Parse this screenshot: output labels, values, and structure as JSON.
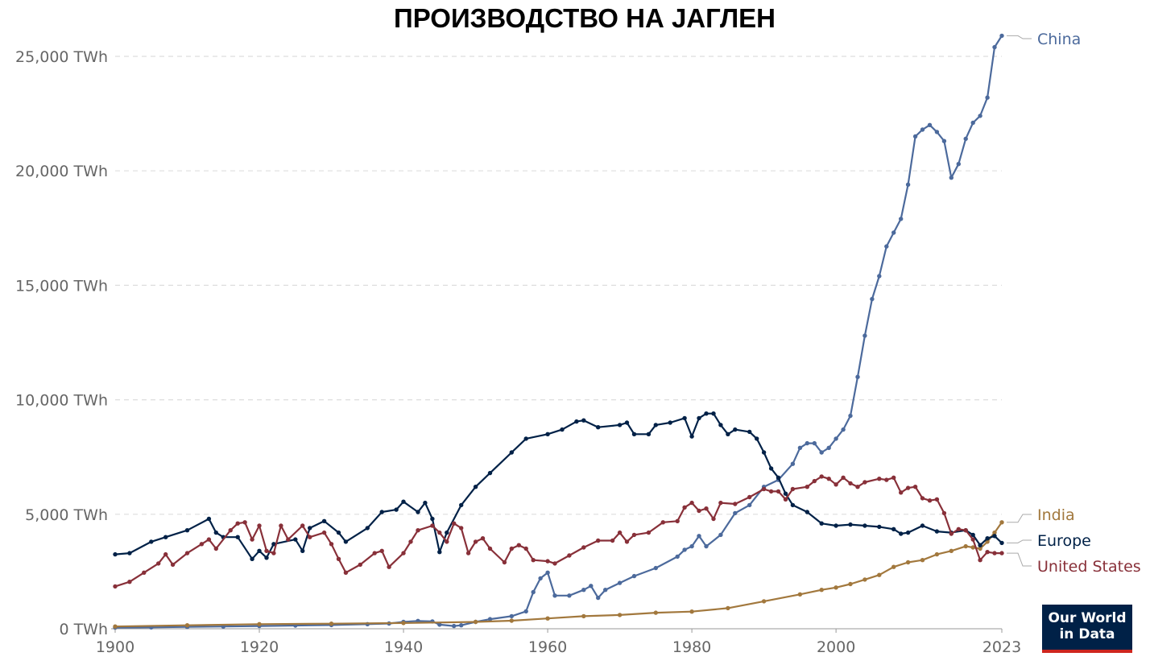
{
  "chart_data": {
    "type": "line",
    "title": "ПРОИЗВОДСТВО НА ЈАГЛЕН",
    "xlim": [
      1900,
      2023
    ],
    "ylim": [
      0,
      25000
    ],
    "x_ticks": [
      "1900",
      "1920",
      "1940",
      "1960",
      "1980",
      "2000",
      "2023"
    ],
    "y_ticks": [
      "0 TWh",
      "5,000 TWh",
      "10,000 TWh",
      "15,000 TWh",
      "20,000 TWh",
      "25,000 TWh"
    ],
    "grid": "horizontal dashed",
    "legend": "labels at line ends (right)",
    "series": [
      {
        "name": "China",
        "color": "#4c6a9c",
        "points": [
          [
            1900,
            50
          ],
          [
            1905,
            60
          ],
          [
            1910,
            80
          ],
          [
            1915,
            100
          ],
          [
            1920,
            120
          ],
          [
            1925,
            140
          ],
          [
            1930,
            160
          ],
          [
            1935,
            200
          ],
          [
            1938,
            230
          ],
          [
            1940,
            300
          ],
          [
            1942,
            340
          ],
          [
            1944,
            320
          ],
          [
            1945,
            180
          ],
          [
            1947,
            120
          ],
          [
            1948,
            150
          ],
          [
            1950,
            300
          ],
          [
            1952,
            420
          ],
          [
            1955,
            550
          ],
          [
            1957,
            760
          ],
          [
            1958,
            1600
          ],
          [
            1959,
            2200
          ],
          [
            1960,
            2450
          ],
          [
            1961,
            1450
          ],
          [
            1963,
            1450
          ],
          [
            1965,
            1700
          ],
          [
            1966,
            1870
          ],
          [
            1967,
            1350
          ],
          [
            1968,
            1700
          ],
          [
            1970,
            2000
          ],
          [
            1972,
            2300
          ],
          [
            1975,
            2650
          ],
          [
            1978,
            3150
          ],
          [
            1979,
            3450
          ],
          [
            1980,
            3600
          ],
          [
            1981,
            4050
          ],
          [
            1982,
            3600
          ],
          [
            1984,
            4100
          ],
          [
            1986,
            5050
          ],
          [
            1988,
            5400
          ],
          [
            1990,
            6200
          ],
          [
            1992,
            6500
          ],
          [
            1994,
            7200
          ],
          [
            1995,
            7900
          ],
          [
            1996,
            8100
          ],
          [
            1997,
            8100
          ],
          [
            1998,
            7700
          ],
          [
            1999,
            7900
          ],
          [
            2000,
            8300
          ],
          [
            2001,
            8700
          ],
          [
            2002,
            9300
          ],
          [
            2003,
            11000
          ],
          [
            2004,
            12800
          ],
          [
            2005,
            14400
          ],
          [
            2006,
            15400
          ],
          [
            2007,
            16700
          ],
          [
            2008,
            17300
          ],
          [
            2009,
            17900
          ],
          [
            2010,
            19400
          ],
          [
            2011,
            21500
          ],
          [
            2012,
            21800
          ],
          [
            2013,
            22000
          ],
          [
            2014,
            21700
          ],
          [
            2015,
            21300
          ],
          [
            2016,
            19700
          ],
          [
            2017,
            20300
          ],
          [
            2018,
            21400
          ],
          [
            2019,
            22100
          ],
          [
            2020,
            22400
          ],
          [
            2021,
            23200
          ],
          [
            2022,
            25400
          ],
          [
            2023,
            25900
          ]
        ]
      },
      {
        "name": "India",
        "color": "#a2783d",
        "points": [
          [
            1900,
            100
          ],
          [
            1910,
            150
          ],
          [
            1920,
            200
          ],
          [
            1930,
            220
          ],
          [
            1940,
            250
          ],
          [
            1950,
            300
          ],
          [
            1955,
            350
          ],
          [
            1960,
            450
          ],
          [
            1965,
            550
          ],
          [
            1970,
            600
          ],
          [
            1975,
            700
          ],
          [
            1980,
            750
          ],
          [
            1985,
            900
          ],
          [
            1990,
            1200
          ],
          [
            1995,
            1500
          ],
          [
            1998,
            1700
          ],
          [
            2000,
            1800
          ],
          [
            2002,
            1950
          ],
          [
            2004,
            2150
          ],
          [
            2006,
            2350
          ],
          [
            2008,
            2700
          ],
          [
            2010,
            2900
          ],
          [
            2012,
            3000
          ],
          [
            2014,
            3250
          ],
          [
            2016,
            3400
          ],
          [
            2018,
            3600
          ],
          [
            2019,
            3550
          ],
          [
            2020,
            3500
          ],
          [
            2021,
            3800
          ],
          [
            2022,
            4200
          ],
          [
            2023,
            4650
          ]
        ]
      },
      {
        "name": "Europe",
        "color": "#002147",
        "points": [
          [
            1900,
            3250
          ],
          [
            1902,
            3300
          ],
          [
            1905,
            3800
          ],
          [
            1907,
            4000
          ],
          [
            1910,
            4300
          ],
          [
            1913,
            4800
          ],
          [
            1914,
            4200
          ],
          [
            1915,
            4000
          ],
          [
            1917,
            4000
          ],
          [
            1919,
            3050
          ],
          [
            1920,
            3400
          ],
          [
            1921,
            3100
          ],
          [
            1922,
            3700
          ],
          [
            1925,
            3900
          ],
          [
            1926,
            3400
          ],
          [
            1927,
            4400
          ],
          [
            1929,
            4700
          ],
          [
            1931,
            4200
          ],
          [
            1932,
            3800
          ],
          [
            1935,
            4400
          ],
          [
            1937,
            5100
          ],
          [
            1939,
            5200
          ],
          [
            1940,
            5550
          ],
          [
            1942,
            5100
          ],
          [
            1943,
            5500
          ],
          [
            1944,
            4800
          ],
          [
            1945,
            3350
          ],
          [
            1946,
            4200
          ],
          [
            1948,
            5400
          ],
          [
            1950,
            6200
          ],
          [
            1952,
            6800
          ],
          [
            1955,
            7700
          ],
          [
            1957,
            8300
          ],
          [
            1960,
            8500
          ],
          [
            1962,
            8700
          ],
          [
            1964,
            9050
          ],
          [
            1965,
            9100
          ],
          [
            1967,
            8800
          ],
          [
            1970,
            8900
          ],
          [
            1971,
            9000
          ],
          [
            1972,
            8500
          ],
          [
            1974,
            8500
          ],
          [
            1975,
            8900
          ],
          [
            1977,
            9000
          ],
          [
            1979,
            9200
          ],
          [
            1980,
            8400
          ],
          [
            1981,
            9200
          ],
          [
            1982,
            9400
          ],
          [
            1983,
            9400
          ],
          [
            1984,
            8900
          ],
          [
            1985,
            8500
          ],
          [
            1986,
            8700
          ],
          [
            1988,
            8600
          ],
          [
            1989,
            8300
          ],
          [
            1990,
            7700
          ],
          [
            1991,
            7000
          ],
          [
            1992,
            6600
          ],
          [
            1993,
            5900
          ],
          [
            1994,
            5400
          ],
          [
            1996,
            5100
          ],
          [
            1998,
            4600
          ],
          [
            2000,
            4500
          ],
          [
            2002,
            4550
          ],
          [
            2004,
            4500
          ],
          [
            2006,
            4450
          ],
          [
            2008,
            4350
          ],
          [
            2009,
            4150
          ],
          [
            2010,
            4200
          ],
          [
            2012,
            4500
          ],
          [
            2014,
            4250
          ],
          [
            2016,
            4200
          ],
          [
            2018,
            4300
          ],
          [
            2019,
            4100
          ],
          [
            2020,
            3650
          ],
          [
            2021,
            3950
          ],
          [
            2022,
            4050
          ],
          [
            2023,
            3750
          ]
        ]
      },
      {
        "name": "United States",
        "color": "#883039",
        "points": [
          [
            1900,
            1850
          ],
          [
            1902,
            2050
          ],
          [
            1904,
            2450
          ],
          [
            1906,
            2850
          ],
          [
            1907,
            3250
          ],
          [
            1908,
            2800
          ],
          [
            1910,
            3300
          ],
          [
            1912,
            3700
          ],
          [
            1913,
            3900
          ],
          [
            1914,
            3500
          ],
          [
            1916,
            4300
          ],
          [
            1917,
            4600
          ],
          [
            1918,
            4650
          ],
          [
            1919,
            3900
          ],
          [
            1920,
            4500
          ],
          [
            1921,
            3400
          ],
          [
            1922,
            3300
          ],
          [
            1923,
            4500
          ],
          [
            1924,
            3900
          ],
          [
            1926,
            4500
          ],
          [
            1927,
            4000
          ],
          [
            1929,
            4200
          ],
          [
            1930,
            3700
          ],
          [
            1931,
            3050
          ],
          [
            1932,
            2450
          ],
          [
            1934,
            2800
          ],
          [
            1936,
            3300
          ],
          [
            1937,
            3400
          ],
          [
            1938,
            2700
          ],
          [
            1940,
            3300
          ],
          [
            1941,
            3800
          ],
          [
            1942,
            4300
          ],
          [
            1944,
            4500
          ],
          [
            1945,
            4200
          ],
          [
            1946,
            3800
          ],
          [
            1947,
            4600
          ],
          [
            1948,
            4400
          ],
          [
            1949,
            3300
          ],
          [
            1950,
            3800
          ],
          [
            1951,
            3950
          ],
          [
            1952,
            3500
          ],
          [
            1954,
            2900
          ],
          [
            1955,
            3500
          ],
          [
            1956,
            3650
          ],
          [
            1957,
            3500
          ],
          [
            1958,
            3000
          ],
          [
            1960,
            2950
          ],
          [
            1961,
            2850
          ],
          [
            1963,
            3200
          ],
          [
            1965,
            3550
          ],
          [
            1967,
            3850
          ],
          [
            1969,
            3850
          ],
          [
            1970,
            4200
          ],
          [
            1971,
            3800
          ],
          [
            1972,
            4100
          ],
          [
            1974,
            4200
          ],
          [
            1976,
            4650
          ],
          [
            1978,
            4700
          ],
          [
            1979,
            5300
          ],
          [
            1980,
            5500
          ],
          [
            1981,
            5150
          ],
          [
            1982,
            5250
          ],
          [
            1983,
            4800
          ],
          [
            1984,
            5500
          ],
          [
            1986,
            5450
          ],
          [
            1988,
            5750
          ],
          [
            1990,
            6100
          ],
          [
            1991,
            6000
          ],
          [
            1992,
            6000
          ],
          [
            1993,
            5650
          ],
          [
            1994,
            6100
          ],
          [
            1996,
            6200
          ],
          [
            1997,
            6450
          ],
          [
            1998,
            6650
          ],
          [
            1999,
            6550
          ],
          [
            2000,
            6300
          ],
          [
            2001,
            6600
          ],
          [
            2002,
            6350
          ],
          [
            2003,
            6200
          ],
          [
            2004,
            6400
          ],
          [
            2006,
            6550
          ],
          [
            2007,
            6500
          ],
          [
            2008,
            6600
          ],
          [
            2009,
            5950
          ],
          [
            2010,
            6150
          ],
          [
            2011,
            6200
          ],
          [
            2012,
            5700
          ],
          [
            2013,
            5600
          ],
          [
            2014,
            5650
          ],
          [
            2015,
            5050
          ],
          [
            2016,
            4150
          ],
          [
            2017,
            4350
          ],
          [
            2018,
            4300
          ],
          [
            2019,
            3900
          ],
          [
            2020,
            3000
          ],
          [
            2021,
            3350
          ],
          [
            2022,
            3300
          ],
          [
            2023,
            3300
          ]
        ]
      }
    ]
  },
  "logo": {
    "line1": "Our World",
    "line2": "in Data",
    "bg": "#002147",
    "accent": "#ce261e"
  }
}
